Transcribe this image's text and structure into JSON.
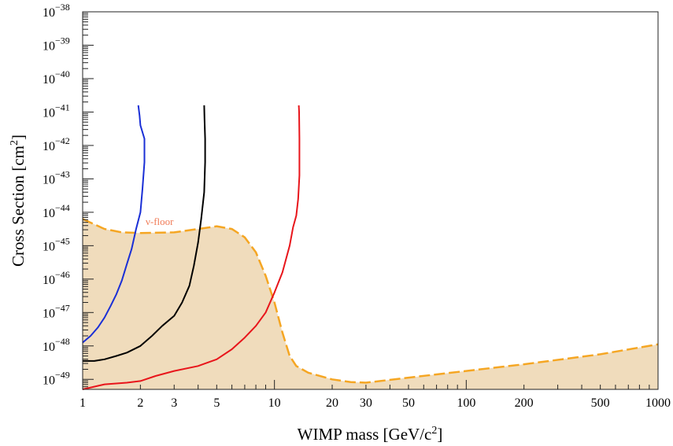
{
  "chart_data": {
    "type": "line",
    "xlabel": "WIMP mass [GeV/c",
    "xlabel_sup": "2",
    "xlabel_end": "]",
    "ylabel": "Cross Section [cm",
    "ylabel_sup": "2",
    "ylabel_end": "]",
    "xscale": "log",
    "yscale": "log",
    "xlim": [
      1,
      1000
    ],
    "ylim_exp": [
      -49.3,
      -38
    ],
    "x_ticks": [
      1,
      2,
      3,
      5,
      10,
      20,
      30,
      50,
      100,
      200,
      500,
      1000
    ],
    "x_tick_labels": [
      "1",
      "2",
      "3",
      "5",
      "10",
      "20",
      "30",
      "50",
      "100",
      "200",
      "500",
      "1000"
    ],
    "y_tick_exponents": [
      -38,
      -39,
      -40,
      -41,
      -42,
      -43,
      -44,
      -45,
      -46,
      -47,
      -48,
      -49
    ],
    "y_tick_base": "10",
    "neutrino_floor": {
      "label": "ν-floor",
      "label_color": "#f07a55",
      "fill_color": "#f0dcbc",
      "line_color": "#f5a623",
      "points": [
        [
          1,
          -44.2
        ],
        [
          1.3,
          -44.5
        ],
        [
          1.6,
          -44.6
        ],
        [
          2,
          -44.62
        ],
        [
          3,
          -44.6
        ],
        [
          4,
          -44.5
        ],
        [
          5,
          -44.42
        ],
        [
          6,
          -44.5
        ],
        [
          7,
          -44.75
        ],
        [
          8,
          -45.2
        ],
        [
          9,
          -45.9
        ],
        [
          10,
          -46.7
        ],
        [
          11,
          -47.6
        ],
        [
          12,
          -48.3
        ],
        [
          13,
          -48.6
        ],
        [
          15,
          -48.8
        ],
        [
          20,
          -49.0
        ],
        [
          25,
          -49.08
        ],
        [
          30,
          -49.1
        ],
        [
          50,
          -48.95
        ],
        [
          100,
          -48.75
        ],
        [
          200,
          -48.55
        ],
        [
          500,
          -48.25
        ],
        [
          1000,
          -47.95
        ]
      ]
    },
    "series": [
      {
        "color": "#1a2fd6",
        "points": [
          [
            1.0,
            -47.9
          ],
          [
            1.1,
            -47.7
          ],
          [
            1.2,
            -47.45
          ],
          [
            1.3,
            -47.15
          ],
          [
            1.4,
            -46.8
          ],
          [
            1.5,
            -46.45
          ],
          [
            1.6,
            -46.05
          ],
          [
            1.7,
            -45.55
          ],
          [
            1.8,
            -45.1
          ],
          [
            1.9,
            -44.5
          ],
          [
            2.0,
            -44.0
          ],
          [
            2.05,
            -43.3
          ],
          [
            2.1,
            -42.5
          ],
          [
            2.1,
            -41.8
          ],
          [
            2.0,
            -41.4
          ],
          [
            1.98,
            -41.1
          ],
          [
            1.95,
            -40.8
          ]
        ]
      },
      {
        "color": "#000000",
        "points": [
          [
            1.0,
            -48.45
          ],
          [
            1.15,
            -48.45
          ],
          [
            1.3,
            -48.4
          ],
          [
            1.5,
            -48.3
          ],
          [
            1.7,
            -48.2
          ],
          [
            2.0,
            -48.0
          ],
          [
            2.3,
            -47.7
          ],
          [
            2.6,
            -47.4
          ],
          [
            3.0,
            -47.1
          ],
          [
            3.3,
            -46.7
          ],
          [
            3.6,
            -46.2
          ],
          [
            3.8,
            -45.6
          ],
          [
            4.0,
            -44.9
          ],
          [
            4.15,
            -44.2
          ],
          [
            4.3,
            -43.4
          ],
          [
            4.35,
            -42.5
          ],
          [
            4.35,
            -41.8
          ],
          [
            4.32,
            -41.2
          ],
          [
            4.3,
            -40.8
          ]
        ]
      },
      {
        "color": "#e8151b",
        "points": [
          [
            1.0,
            -49.3
          ],
          [
            1.3,
            -49.15
          ],
          [
            1.7,
            -49.1
          ],
          [
            2.0,
            -49.05
          ],
          [
            2.4,
            -48.9
          ],
          [
            3.0,
            -48.75
          ],
          [
            4.0,
            -48.6
          ],
          [
            5.0,
            -48.4
          ],
          [
            6.0,
            -48.1
          ],
          [
            7.0,
            -47.75
          ],
          [
            8.0,
            -47.4
          ],
          [
            9.0,
            -47.0
          ],
          [
            10.0,
            -46.4
          ],
          [
            11.0,
            -45.8
          ],
          [
            12.0,
            -45.0
          ],
          [
            12.5,
            -44.45
          ],
          [
            13.0,
            -44.1
          ],
          [
            13.3,
            -43.6
          ],
          [
            13.5,
            -42.9
          ],
          [
            13.5,
            -41.8
          ],
          [
            13.45,
            -41.0
          ],
          [
            13.4,
            -40.8
          ]
        ]
      }
    ]
  }
}
